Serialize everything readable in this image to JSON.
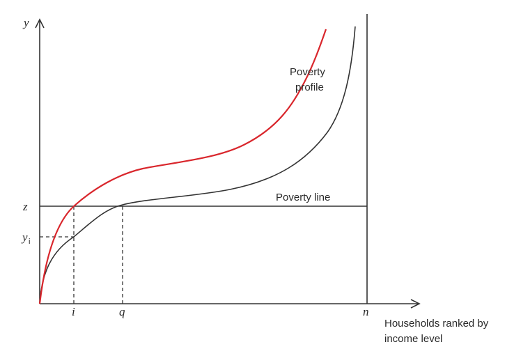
{
  "axes": {
    "y_label": "y",
    "x_label_line1": "Households ranked by",
    "x_label_line2": "income level"
  },
  "tick_labels": {
    "z": "z",
    "yi_base": "y",
    "yi_sub": "i",
    "i": "i",
    "q": "q",
    "n": "n"
  },
  "curve_labels": {
    "poverty_profile_line1": "Poverty",
    "poverty_profile_line2": "profile",
    "poverty_line": "Poverty line"
  },
  "colors": {
    "axis": "#333333",
    "poverty_profile": "#333333",
    "shifted_profile": "#d9262c"
  }
}
